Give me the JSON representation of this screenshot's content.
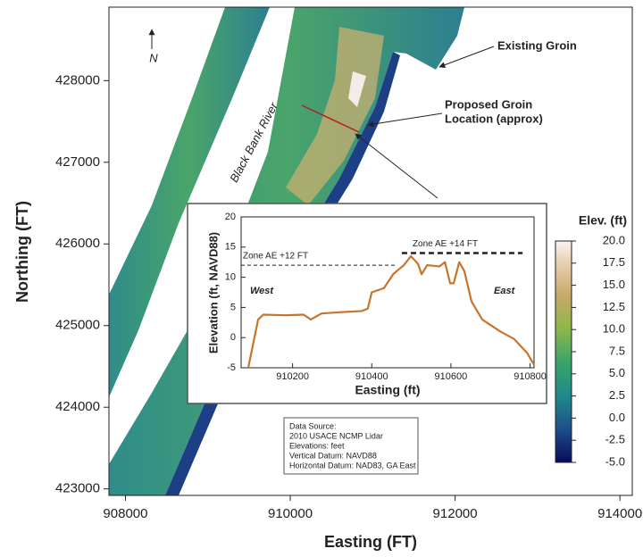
{
  "map": {
    "xlabel": "Easting (FT)",
    "ylabel": "Northing (FT)",
    "xlim": [
      907800,
      914150
    ],
    "ylim": [
      422920,
      428900
    ],
    "xticks": [
      908000,
      910000,
      912000,
      914000
    ],
    "yticks": [
      423000,
      424000,
      425000,
      426000,
      427000,
      428000
    ],
    "north": "N",
    "existing_groin": "Existing Groin",
    "proposed_groin": [
      "Proposed Groin",
      "Location (approx)"
    ],
    "river": "Black Bank River",
    "source": [
      "Data Source:",
      "2010 USACE NCMP Lidar",
      "Elevations: feet",
      "Vertical Datum: NAVD88",
      "Horizontal Datum: NAD83, GA East"
    ]
  },
  "colorbar": {
    "title": "Elev. (ft)",
    "lim": [
      -5,
      20
    ],
    "ticks": [
      {
        "value": 20,
        "label": "20.0"
      },
      {
        "value": 17.5,
        "label": "17.5"
      },
      {
        "value": 15,
        "label": "15.0"
      },
      {
        "value": 12.5,
        "label": "12.5"
      },
      {
        "value": 10,
        "label": "10.0"
      },
      {
        "value": 7.5,
        "label": "7.5"
      },
      {
        "value": 5,
        "label": "5.0"
      },
      {
        "value": 2.5,
        "label": "2.5"
      },
      {
        "value": 0,
        "label": "0.0"
      },
      {
        "value": -2.5,
        "label": "-2.5"
      },
      {
        "value": -5,
        "label": "-5.0"
      }
    ]
  },
  "chart_data": {
    "type": "line",
    "xlabel": "Easting (ft)",
    "ylabel": "Elevation (ft, NAVD88)",
    "xlim": [
      910070,
      910810
    ],
    "ylim": [
      -5,
      20
    ],
    "xticks": [
      910200,
      910400,
      910600,
      910800
    ],
    "yticks": [
      -5,
      0,
      5,
      10,
      15,
      20
    ],
    "x": [
      910088,
      910113,
      910126,
      910183,
      910228,
      910246,
      910273,
      910318,
      910375,
      910390,
      910400,
      910431,
      910454,
      910481,
      910499,
      910517,
      910526,
      910540,
      910571,
      910585,
      910598,
      910607,
      910621,
      910634,
      910652,
      910679,
      910725,
      910759,
      910792,
      910810
    ],
    "series": [
      {
        "color": "#c8742c",
        "values": [
          -5,
          3,
          3.8,
          3.7,
          3.8,
          3.0,
          4.0,
          4.2,
          4.4,
          4.8,
          7.5,
          8.2,
          10.5,
          12,
          13.5,
          12.2,
          10.5,
          12,
          11.8,
          12.5,
          9,
          9,
          12.5,
          11,
          6,
          3,
          1,
          -0.2,
          -2.5,
          -4.5
        ]
      }
    ],
    "zones": [
      {
        "label": "Zone AE +12 FT",
        "value": 12,
        "x": [
          910070,
          910460
        ]
      },
      {
        "label": "Zone AE +14 FT",
        "value": 14,
        "x": [
          910476,
          910781
        ]
      }
    ],
    "side_labels": [
      "West",
      "East"
    ]
  }
}
